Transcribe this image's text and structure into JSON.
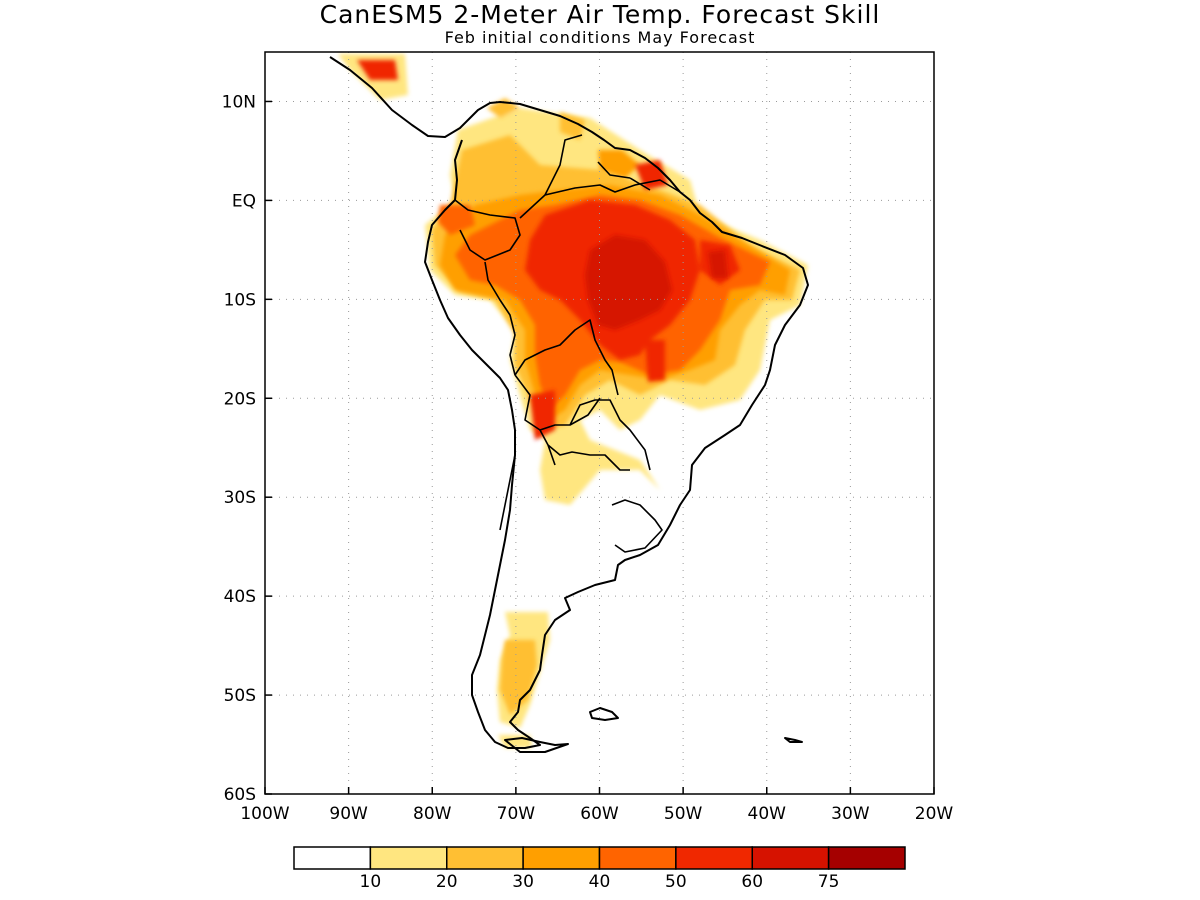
{
  "title": "CanESM5 2-Meter Air Temp. Forecast Skill",
  "subtitle": "Feb initial conditions  May Forecast",
  "map": {
    "region": "South America",
    "lon_range": [
      -100,
      -20
    ],
    "lat_range": [
      -60,
      15
    ],
    "x_ticks": [
      {
        "value": -100,
        "label": "100W"
      },
      {
        "value": -90,
        "label": "90W"
      },
      {
        "value": -80,
        "label": "80W"
      },
      {
        "value": -70,
        "label": "70W"
      },
      {
        "value": -60,
        "label": "60W"
      },
      {
        "value": -50,
        "label": "50W"
      },
      {
        "value": -40,
        "label": "40W"
      },
      {
        "value": -30,
        "label": "30W"
      },
      {
        "value": -20,
        "label": "20W"
      }
    ],
    "y_ticks": [
      {
        "value": 10,
        "label": "10N"
      },
      {
        "value": 0,
        "label": "EQ"
      },
      {
        "value": -10,
        "label": "10S"
      },
      {
        "value": -20,
        "label": "20S"
      },
      {
        "value": -30,
        "label": "30S"
      },
      {
        "value": -40,
        "label": "40S"
      },
      {
        "value": -50,
        "label": "50S"
      },
      {
        "value": -60,
        "label": "60S"
      }
    ],
    "grid": "dotted"
  },
  "legend": {
    "bins": [
      {
        "color": "#ffffff"
      },
      {
        "color": "#ffe680"
      },
      {
        "color": "#ffbf33"
      },
      {
        "color": "#ff9f00"
      },
      {
        "color": "#ff6400"
      },
      {
        "color": "#f02800"
      },
      {
        "color": "#d61200"
      },
      {
        "color": "#a50000"
      }
    ],
    "labels": [
      "10",
      "20",
      "30",
      "40",
      "50",
      "60",
      "75"
    ]
  },
  "colors": {
    "c10": "#ffe680",
    "c20": "#ffbf33",
    "c30": "#ff9f00",
    "c40": "#ff6400",
    "c50": "#f02800",
    "c60": "#d61200"
  }
}
